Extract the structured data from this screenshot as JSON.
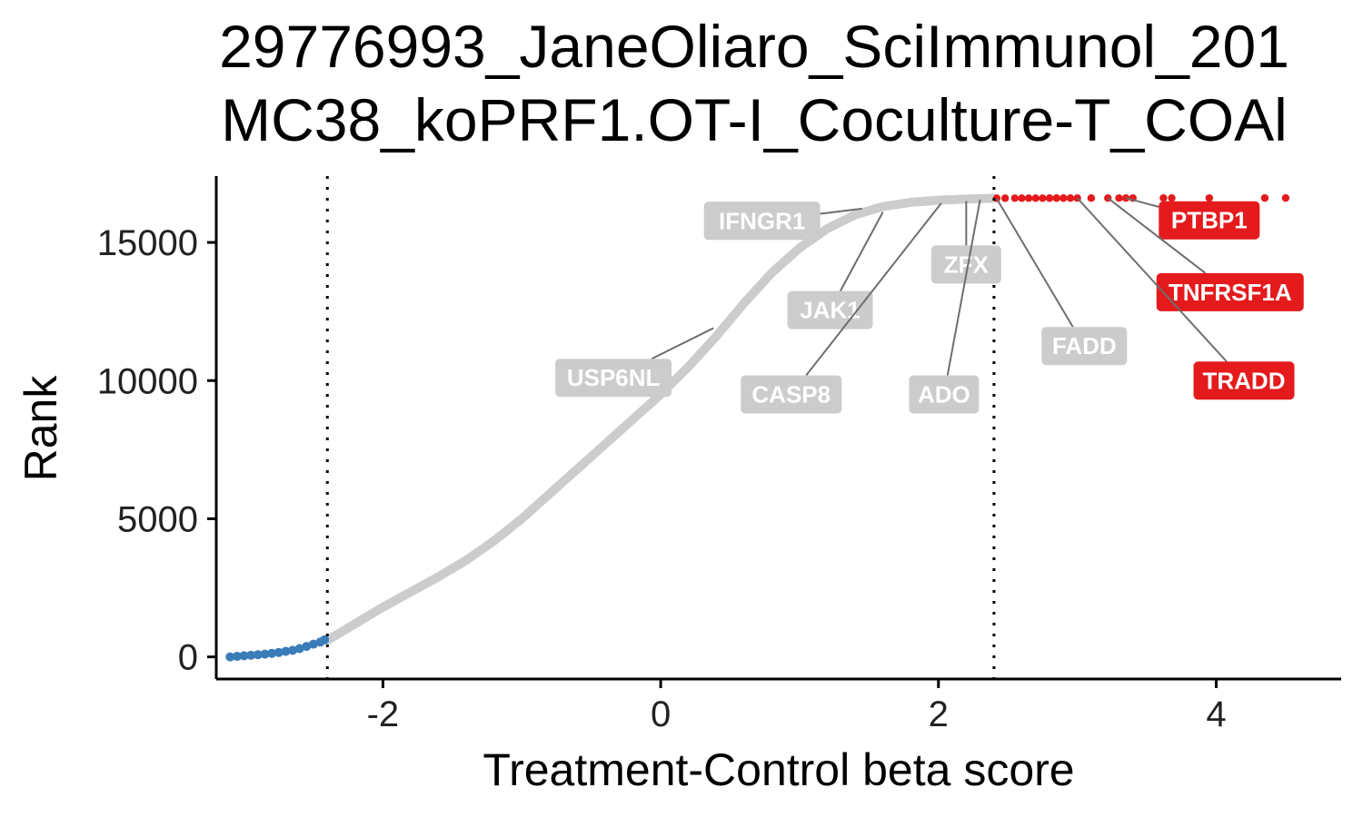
{
  "chart_data": {
    "type": "scatter",
    "title_lines": [
      "29776993_JaneOliaro_SciImmunol_201",
      "MC38_koPRF1.OT-I_Coculture-T_COAl"
    ],
    "xlabel": "Treatment-Control beta score",
    "ylabel": "Rank",
    "xlim": [
      -3.2,
      4.9
    ],
    "ylim": [
      -800,
      17400
    ],
    "x_ticks": [
      -2,
      0,
      2,
      4
    ],
    "x_tick_labels": [
      "-2",
      "0",
      "2",
      "4"
    ],
    "y_ticks": [
      0,
      5000,
      10000,
      15000
    ],
    "y_tick_labels": [
      "0",
      "5000",
      "10000",
      "15000"
    ],
    "thresholds": [
      -2.4,
      2.4
    ],
    "grid": false,
    "legend": "none",
    "total_rank": 16600,
    "curve_x": [
      -3.15,
      -3.0,
      -2.8,
      -2.6,
      -2.4,
      -2.2,
      -2.0,
      -1.8,
      -1.6,
      -1.4,
      -1.2,
      -1.0,
      -0.8,
      -0.6,
      -0.4,
      -0.2,
      0.0,
      0.2,
      0.4,
      0.6,
      0.8,
      1.0,
      1.2,
      1.4,
      1.6,
      1.8,
      2.0,
      2.2,
      2.4
    ],
    "curve_rank": [
      0,
      50,
      150,
      300,
      600,
      1200,
      1800,
      2350,
      2900,
      3500,
      4200,
      5000,
      5900,
      6800,
      7700,
      8600,
      9500,
      10500,
      11600,
      12800,
      13900,
      14800,
      15500,
      16000,
      16300,
      16450,
      16530,
      16570,
      16600
    ],
    "series": [
      {
        "color": "#3a7cb8",
        "x": [
          -3.1,
          -3.05,
          -3.0,
          -2.95,
          -2.9,
          -2.85,
          -2.8,
          -2.75,
          -2.7,
          -2.65,
          -2.6,
          -2.55,
          -2.5,
          -2.45,
          -2.42
        ],
        "y": [
          0,
          20,
          40,
          60,
          80,
          100,
          130,
          160,
          200,
          240,
          300,
          380,
          460,
          540,
          620
        ]
      },
      {
        "color": "#cccccc",
        "x": [],
        "y": []
      },
      {
        "color": "#e41a1c",
        "x": [
          2.42,
          2.48,
          2.55,
          2.6,
          2.65,
          2.7,
          2.75,
          2.8,
          2.85,
          2.9,
          2.95,
          3.0,
          3.1,
          3.22,
          3.3,
          3.35,
          3.4,
          3.62,
          3.68,
          3.95,
          4.35,
          4.5
        ],
        "y": [
          16600,
          16600,
          16601,
          16601,
          16602,
          16602,
          16602,
          16603,
          16603,
          16603,
          16604,
          16604,
          16604,
          16605,
          16605,
          16605,
          16606,
          16606,
          16606,
          16607,
          16607,
          16608
        ]
      }
    ],
    "labels": [
      {
        "gene": "IFNGR1",
        "x": 0.73,
        "y": 15780,
        "point_x": 1.45,
        "point_y": 16220,
        "color": "#cccccc"
      },
      {
        "gene": "JAK1",
        "x": 1.22,
        "y": 12550,
        "point_x": 1.6,
        "point_y": 16100,
        "color": "#cccccc"
      },
      {
        "gene": "CASP8",
        "x": 0.94,
        "y": 9500,
        "point_x": 2.02,
        "point_y": 16420,
        "color": "#cccccc"
      },
      {
        "gene": "USP6NL",
        "x": -0.34,
        "y": 10100,
        "point_x": 0.38,
        "point_y": 11900,
        "color": "#cccccc"
      },
      {
        "gene": "ZFX",
        "x": 2.2,
        "y": 14200,
        "point_x": 2.2,
        "point_y": 16500,
        "color": "#cccccc"
      },
      {
        "gene": "ADO",
        "x": 2.04,
        "y": 9500,
        "point_x": 2.3,
        "point_y": 16550,
        "color": "#cccccc"
      },
      {
        "gene": "FADD",
        "x": 3.05,
        "y": 11250,
        "point_x": 2.42,
        "point_y": 16580,
        "color": "#cccccc"
      },
      {
        "gene": "PTBP1",
        "x": 3.95,
        "y": 15800,
        "point_x": 3.35,
        "point_y": 16605,
        "color": "#e41a1c"
      },
      {
        "gene": "TNFRSF1A",
        "x": 4.1,
        "y": 13200,
        "point_x": 3.22,
        "point_y": 16605,
        "color": "#e41a1c"
      },
      {
        "gene": "TRADD",
        "x": 4.2,
        "y": 10000,
        "point_x": 3.0,
        "point_y": 16604,
        "color": "#e41a1c"
      }
    ]
  }
}
